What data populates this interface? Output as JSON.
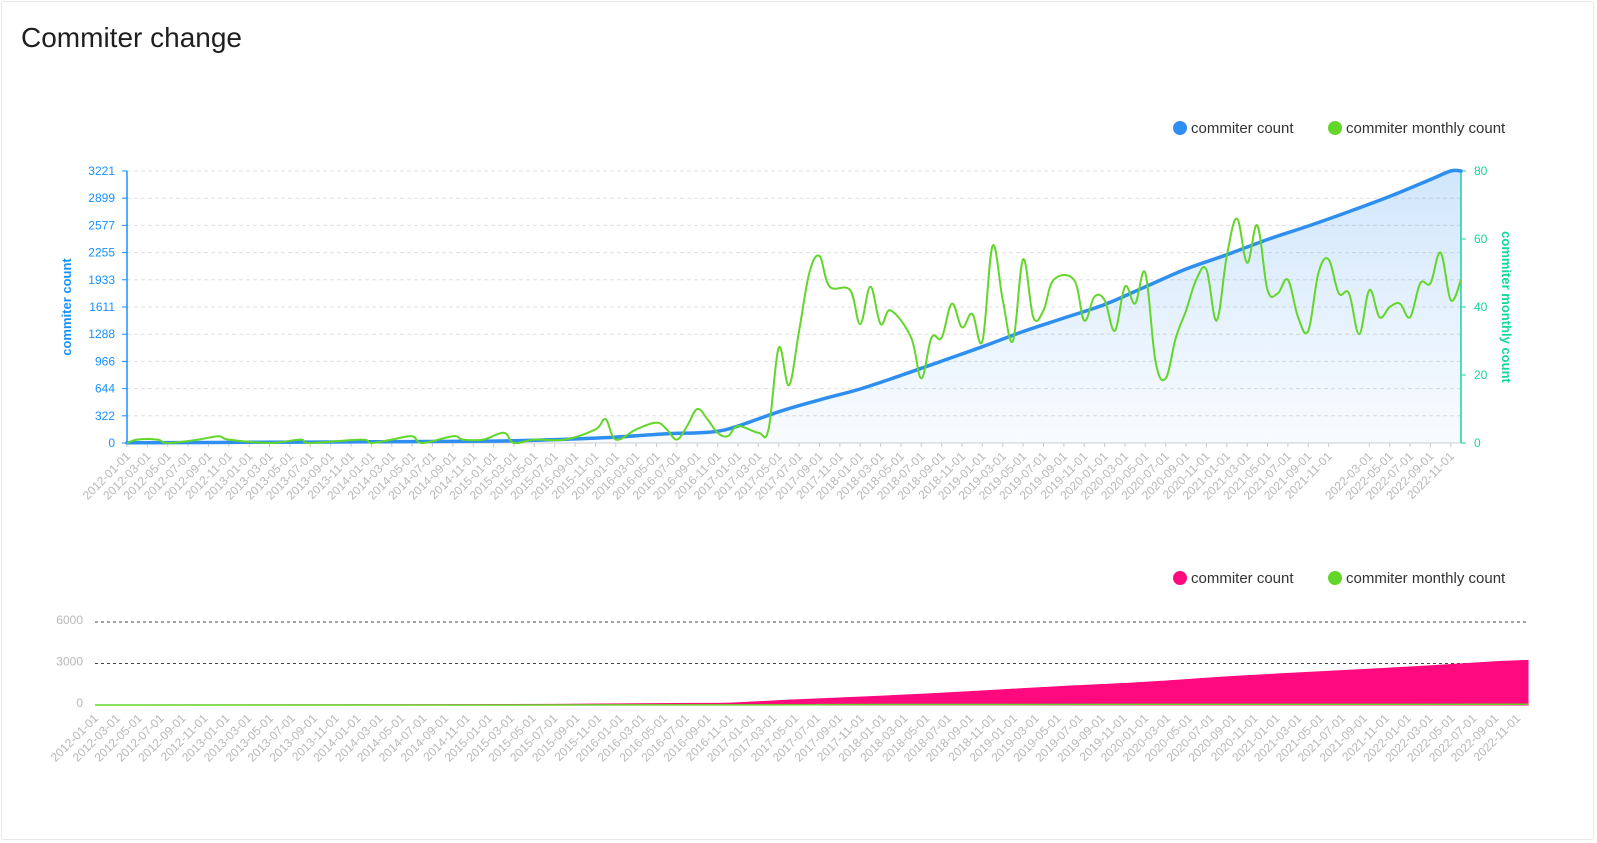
{
  "page": {
    "title": "Commiter change"
  },
  "colors": {
    "count_blue": "#2f8ff0",
    "monthly_green": "#63d62a",
    "left_axis": "#1890ff",
    "right_axis": "#13d6a0",
    "count_pink": "#ff0a7e",
    "grid": "#e0e0e0",
    "tick_gray": "#b8b8b8"
  },
  "chart_data": [
    {
      "type": "line",
      "legend": {
        "placement": "top-right",
        "items": [
          "commiter count",
          "commiter monthly count"
        ]
      },
      "y_left": {
        "label": "commiter count",
        "ticks": [
          "0",
          "322",
          "644",
          "966",
          "1288",
          "1611",
          "1933",
          "2255",
          "2577",
          "2899",
          "3221"
        ],
        "range": [
          0,
          3221
        ]
      },
      "y_right": {
        "label": "commiter monthly count",
        "ticks": [
          "0",
          "20",
          "40",
          "60",
          "80"
        ],
        "range": [
          0,
          80
        ]
      },
      "x_start": "2012-01-01",
      "x_end": "2022-12-01",
      "x_labels": [
        "2012-01-01",
        "2012-03-01",
        "2012-05-01",
        "2012-07-01",
        "2012-09-01",
        "2012-11-01",
        "2013-01-01",
        "2013-03-01",
        "2013-05-01",
        "2013-07-01",
        "2013-09-01",
        "2013-11-01",
        "2014-01-01",
        "2014-03-01",
        "2014-05-01",
        "2014-07-01",
        "2014-09-01",
        "2014-11-01",
        "2015-01-01",
        "2015-03-01",
        "2015-05-01",
        "2015-07-01",
        "2015-09-01",
        "2015-11-01",
        "2016-01-01",
        "2016-03-01",
        "2016-05-01",
        "2016-07-01",
        "2016-09-01",
        "2016-11-01",
        "2017-01-01",
        "2017-03-01",
        "2017-05-01",
        "2017-07-01",
        "2017-09-01",
        "2017-11-01",
        "2018-01-01",
        "2018-03-01",
        "2018-05-01",
        "2018-07-01",
        "2018-09-01",
        "2018-11-01",
        "2019-01-01",
        "2019-03-01",
        "2019-05-01",
        "2019-07-01",
        "2019-09-01",
        "2019-11-01",
        "2020-01-01",
        "2020-03-01",
        "2020-05-01",
        "2020-07-01",
        "2020-09-01",
        "2020-11-01",
        "2021-01-01",
        "2021-03-01",
        "2021-05-01",
        "2021-07-01",
        "2021-09-01",
        "2021-11-01",
        "2022-03-01",
        "2022-05-01",
        "2022-07-01",
        "2022-09-01",
        "2022-11-01"
      ],
      "series": [
        {
          "name": "commiter count",
          "axis": "left",
          "area": true,
          "points": [
            [
              "2012-01-01",
              3
            ],
            [
              "2013-01-01",
              8
            ],
            [
              "2014-01-01",
              14
            ],
            [
              "2015-01-01",
              22
            ],
            [
              "2015-07-01",
              40
            ],
            [
              "2016-01-01",
              70
            ],
            [
              "2016-06-01",
              110
            ],
            [
              "2016-09-01",
              120
            ],
            [
              "2016-11-01",
              140
            ],
            [
              "2017-01-01",
              200
            ],
            [
              "2017-05-01",
              370
            ],
            [
              "2017-09-01",
              510
            ],
            [
              "2018-01-01",
              640
            ],
            [
              "2018-05-01",
              800
            ],
            [
              "2018-09-01",
              970
            ],
            [
              "2019-01-01",
              1140
            ],
            [
              "2019-05-01",
              1320
            ],
            [
              "2019-09-01",
              1480
            ],
            [
              "2020-01-01",
              1640
            ],
            [
              "2020-05-01",
              1850
            ],
            [
              "2020-09-01",
              2060
            ],
            [
              "2021-01-01",
              2230
            ],
            [
              "2021-05-01",
              2410
            ],
            [
              "2021-09-01",
              2570
            ],
            [
              "2022-01-01",
              2740
            ],
            [
              "2022-05-01",
              2920
            ],
            [
              "2022-09-01",
              3120
            ],
            [
              "2022-11-01",
              3221
            ],
            [
              "2022-12-01",
              3221
            ]
          ]
        },
        {
          "name": "commiter monthly count",
          "axis": "right",
          "points": [
            [
              "2012-01-01",
              0
            ],
            [
              "2012-02-01",
              1
            ],
            [
              "2012-04-01",
              1
            ],
            [
              "2012-05-01",
              0
            ],
            [
              "2012-08-01",
              1
            ],
            [
              "2012-10-01",
              2
            ],
            [
              "2012-11-01",
              1
            ],
            [
              "2013-03-01",
              0
            ],
            [
              "2013-06-01",
              1
            ],
            [
              "2013-07-01",
              0
            ],
            [
              "2013-12-01",
              1
            ],
            [
              "2014-01-01",
              0
            ],
            [
              "2014-03-01",
              1
            ],
            [
              "2014-05-01",
              2
            ],
            [
              "2014-06-01",
              0
            ],
            [
              "2014-09-01",
              2
            ],
            [
              "2014-10-01",
              1
            ],
            [
              "2014-12-01",
              1
            ],
            [
              "2015-02-01",
              3
            ],
            [
              "2015-03-01",
              0
            ],
            [
              "2015-05-01",
              1
            ],
            [
              "2015-08-01",
              1
            ],
            [
              "2015-11-01",
              4
            ],
            [
              "2015-12-01",
              7
            ],
            [
              "2016-01-01",
              1
            ],
            [
              "2016-03-01",
              4
            ],
            [
              "2016-05-01",
              6
            ],
            [
              "2016-06-01",
              4
            ],
            [
              "2016-07-01",
              1
            ],
            [
              "2016-08-01",
              5
            ],
            [
              "2016-09-01",
              10
            ],
            [
              "2016-10-01",
              7
            ],
            [
              "2016-11-01",
              3
            ],
            [
              "2016-12-01",
              2
            ],
            [
              "2017-01-01",
              5
            ],
            [
              "2017-03-01",
              3
            ],
            [
              "2017-04-01",
              4
            ],
            [
              "2017-05-01",
              28
            ],
            [
              "2017-06-01",
              17
            ],
            [
              "2017-07-01",
              33
            ],
            [
              "2017-08-01",
              50
            ],
            [
              "2017-09-01",
              55
            ],
            [
              "2017-10-01",
              46
            ],
            [
              "2017-12-01",
              45
            ],
            [
              "2018-01-01",
              35
            ],
            [
              "2018-02-01",
              46
            ],
            [
              "2018-03-01",
              35
            ],
            [
              "2018-04-01",
              39
            ],
            [
              "2018-06-01",
              31
            ],
            [
              "2018-07-01",
              19
            ],
            [
              "2018-08-01",
              31
            ],
            [
              "2018-09-01",
              31
            ],
            [
              "2018-10-01",
              41
            ],
            [
              "2018-11-01",
              34
            ],
            [
              "2018-12-01",
              38
            ],
            [
              "2019-01-01",
              30
            ],
            [
              "2019-02-01",
              58
            ],
            [
              "2019-03-01",
              42
            ],
            [
              "2019-04-01",
              30
            ],
            [
              "2019-05-01",
              54
            ],
            [
              "2019-06-01",
              37
            ],
            [
              "2019-07-01",
              39
            ],
            [
              "2019-08-01",
              48
            ],
            [
              "2019-10-01",
              48
            ],
            [
              "2019-11-01",
              36
            ],
            [
              "2019-12-01",
              43
            ],
            [
              "2020-01-01",
              42
            ],
            [
              "2020-02-01",
              33
            ],
            [
              "2020-03-01",
              46
            ],
            [
              "2020-04-01",
              41
            ],
            [
              "2020-05-01",
              50
            ],
            [
              "2020-06-01",
              24
            ],
            [
              "2020-07-01",
              19
            ],
            [
              "2020-08-01",
              31
            ],
            [
              "2020-09-01",
              39
            ],
            [
              "2020-10-01",
              48
            ],
            [
              "2020-11-01",
              51
            ],
            [
              "2020-12-01",
              36
            ],
            [
              "2021-01-01",
              55
            ],
            [
              "2021-02-01",
              66
            ],
            [
              "2021-03-01",
              53
            ],
            [
              "2021-04-01",
              64
            ],
            [
              "2021-05-01",
              45
            ],
            [
              "2021-06-01",
              44
            ],
            [
              "2021-07-01",
              48
            ],
            [
              "2021-08-01",
              37
            ],
            [
              "2021-09-01",
              33
            ],
            [
              "2021-10-01",
              50
            ],
            [
              "2021-11-01",
              54
            ],
            [
              "2021-12-01",
              44
            ],
            [
              "2022-01-01",
              44
            ],
            [
              "2022-02-01",
              32
            ],
            [
              "2022-03-01",
              45
            ],
            [
              "2022-04-01",
              37
            ],
            [
              "2022-05-01",
              40
            ],
            [
              "2022-06-01",
              41
            ],
            [
              "2022-07-01",
              37
            ],
            [
              "2022-08-01",
              47
            ],
            [
              "2022-09-01",
              47
            ],
            [
              "2022-10-01",
              56
            ],
            [
              "2022-11-01",
              42
            ],
            [
              "2022-12-01",
              48
            ]
          ]
        }
      ]
    },
    {
      "type": "area",
      "legend": {
        "placement": "top-right",
        "items": [
          "commiter count",
          "commiter monthly count"
        ]
      },
      "y": {
        "ticks": [
          "0",
          "3000",
          "6000"
        ],
        "range": [
          0,
          6000
        ]
      },
      "x_start": "2012-01-01",
      "x_end": "2022-12-01",
      "x_labels": [
        "2012-01-01",
        "2012-03-01",
        "2012-05-01",
        "2012-07-01",
        "2012-09-01",
        "2012-11-01",
        "2013-01-01",
        "2013-03-01",
        "2013-05-01",
        "2013-07-01",
        "2013-09-01",
        "2013-11-01",
        "2014-01-01",
        "2014-03-01",
        "2014-05-01",
        "2014-07-01",
        "2014-09-01",
        "2014-11-01",
        "2015-01-01",
        "2015-03-01",
        "2015-05-01",
        "2015-07-01",
        "2015-09-01",
        "2015-11-01",
        "2016-01-01",
        "2016-03-01",
        "2016-05-01",
        "2016-07-01",
        "2016-09-01",
        "2016-11-01",
        "2017-01-01",
        "2017-03-01",
        "2017-05-01",
        "2017-07-01",
        "2017-09-01",
        "2017-11-01",
        "2018-01-01",
        "2018-03-01",
        "2018-05-01",
        "2018-07-01",
        "2018-09-01",
        "2018-11-01",
        "2019-01-01",
        "2019-03-01",
        "2019-05-01",
        "2019-07-01",
        "2019-09-01",
        "2019-11-01",
        "2020-01-01",
        "2020-03-01",
        "2020-05-01",
        "2020-07-01",
        "2020-09-01",
        "2020-11-01",
        "2021-01-01",
        "2021-03-01",
        "2021-05-01",
        "2021-07-01",
        "2021-09-01",
        "2021-11-01",
        "2022-01-01",
        "2022-03-01",
        "2022-05-01",
        "2022-07-01",
        "2022-09-01",
        "2022-11-01"
      ],
      "series": [
        {
          "name": "commiter count",
          "area": true,
          "points": [
            [
              "2012-01-01",
              3
            ],
            [
              "2014-01-01",
              14
            ],
            [
              "2015-07-01",
              40
            ],
            [
              "2016-06-01",
              110
            ],
            [
              "2016-11-01",
              140
            ],
            [
              "2017-05-01",
              370
            ],
            [
              "2018-01-01",
              640
            ],
            [
              "2018-09-01",
              970
            ],
            [
              "2019-05-01",
              1320
            ],
            [
              "2020-01-01",
              1640
            ],
            [
              "2020-09-01",
              2060
            ],
            [
              "2021-05-01",
              2410
            ],
            [
              "2022-01-01",
              2740
            ],
            [
              "2022-09-01",
              3120
            ],
            [
              "2022-12-01",
              3221
            ]
          ]
        },
        {
          "name": "commiter monthly count",
          "points": [
            [
              "2012-01-01",
              0
            ],
            [
              "2017-01-01",
              5
            ],
            [
              "2018-01-01",
              35
            ],
            [
              "2022-12-01",
              48
            ]
          ]
        }
      ]
    }
  ]
}
